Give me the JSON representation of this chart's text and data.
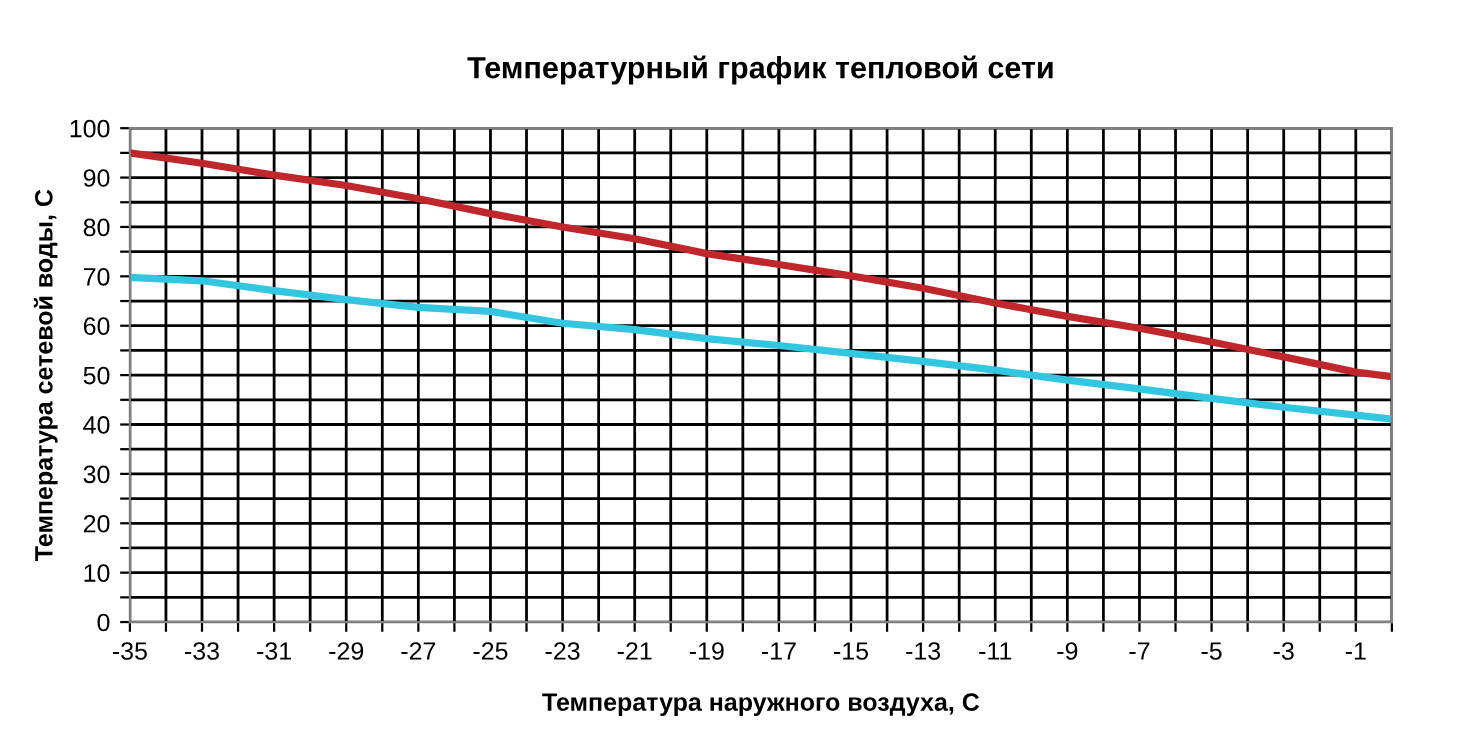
{
  "chart_data": {
    "type": "line",
    "title": "Температурный график тепловой сети",
    "xlabel": "Температура наружного воздуха, С",
    "ylabel": "Температура сетевой воды, С",
    "x": [
      -35,
      -33,
      -31,
      -29,
      -27,
      -25,
      -23,
      -21,
      -19,
      -17,
      -15,
      -13,
      -11,
      -9,
      -7,
      -5,
      -3,
      -1,
      0
    ],
    "series": [
      {
        "color": "#c0272d",
        "values": [
          95,
          92.9,
          90.5,
          88.4,
          85.7,
          82.7,
          80,
          77.6,
          74.6,
          72.4,
          70.1,
          67.6,
          64.6,
          61.9,
          59.5,
          56.7,
          53.7,
          50.6,
          49.7
        ]
      },
      {
        "color": "#33c6e0",
        "values": [
          69.8,
          69.1,
          67.1,
          65.3,
          63.7,
          62.9,
          60.5,
          59.2,
          57.4,
          56,
          54.4,
          52.8,
          51,
          49,
          47.2,
          45.3,
          43.5,
          41.9,
          41.1
        ]
      }
    ],
    "xlim": [
      -35,
      0
    ],
    "xticks": [
      -35,
      {
        "value": -34,
        "label": null
      },
      -33,
      {
        "value": -32,
        "label": null
      },
      -31,
      {
        "value": -30,
        "label": null
      },
      -29,
      {
        "value": -28,
        "label": null
      },
      -27,
      {
        "value": -26,
        "label": null
      },
      -25,
      {
        "value": -24,
        "label": null
      },
      -23,
      {
        "value": -22,
        "label": null
      },
      -21,
      {
        "value": -20,
        "label": null
      },
      -19,
      {
        "value": -18,
        "label": null
      },
      -17,
      {
        "value": -16,
        "label": null
      },
      -15,
      {
        "value": -14,
        "label": null
      },
      -13,
      {
        "value": -12,
        "label": null
      },
      -11,
      {
        "value": -10,
        "label": null
      },
      -9,
      {
        "value": -8,
        "label": null
      },
      -7,
      {
        "value": -6,
        "label": null
      },
      -5,
      {
        "value": -4,
        "label": null
      },
      -3,
      {
        "value": -2,
        "label": null
      },
      -1,
      {
        "value": 0,
        "label": null
      }
    ],
    "ylim": [
      0,
      100
    ],
    "yticks": [
      0,
      {
        "value": 5,
        "label": null
      },
      10,
      {
        "value": 15,
        "label": null
      },
      20,
      {
        "value": 25,
        "label": null
      },
      30,
      {
        "value": 35,
        "label": null
      },
      40,
      {
        "value": 45,
        "label": null
      },
      50,
      {
        "value": 55,
        "label": null
      },
      60,
      {
        "value": 65,
        "label": null
      },
      70,
      {
        "value": 75,
        "label": null
      },
      80,
      {
        "value": 85,
        "label": null
      },
      90,
      {
        "value": 95,
        "label": null
      },
      100
    ],
    "grid": true,
    "legend": false,
    "marker": "none",
    "line_style": "solid"
  }
}
